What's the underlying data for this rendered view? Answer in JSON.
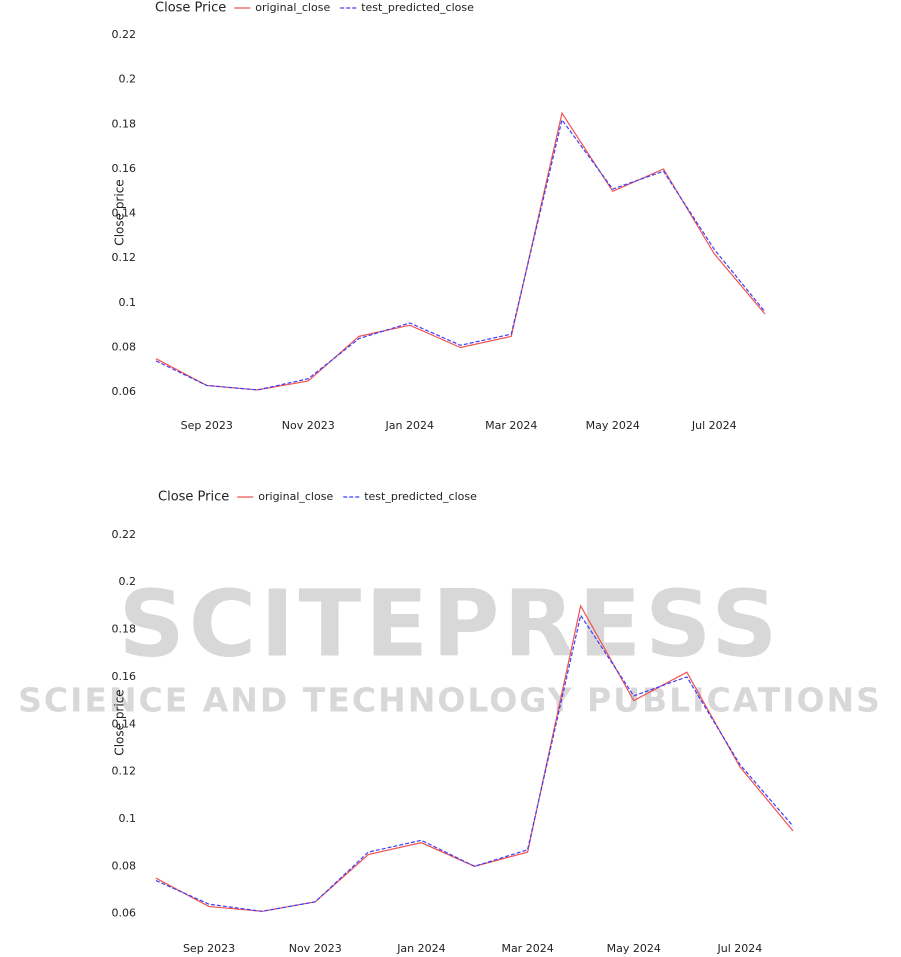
{
  "chart_data": [
    {
      "type": "line",
      "title": "Close Price",
      "y_label": "Close price",
      "x": [
        "2023-08",
        "2023-09",
        "2023-10",
        "2023-11",
        "2023-12",
        "2024-01",
        "2024-02",
        "2024-03",
        "2024-04",
        "2024-05",
        "2024-06",
        "2024-07",
        "2024-08"
      ],
      "series": [
        {
          "name": "original_close",
          "color": "#ef5350",
          "dash": false,
          "values": [
            0.075,
            0.063,
            0.061,
            0.065,
            0.085,
            0.09,
            0.08,
            0.085,
            0.185,
            0.15,
            0.16,
            0.122,
            0.095
          ]
        },
        {
          "name": "test_predicted_close",
          "color": "#3d3dff",
          "dash": true,
          "values": [
            0.074,
            0.063,
            0.061,
            0.066,
            0.084,
            0.091,
            0.081,
            0.086,
            0.182,
            0.151,
            0.159,
            0.124,
            0.096
          ]
        }
      ],
      "xlim": [
        "2023-08",
        "2024-08"
      ],
      "xticks": [
        {
          "value": "2023-09",
          "label": "Sep 2023"
        },
        {
          "value": "2023-11",
          "label": "Nov 2023"
        },
        {
          "value": "2024-01",
          "label": "Jan 2024"
        },
        {
          "value": "2024-03",
          "label": "Mar 2024"
        },
        {
          "value": "2024-05",
          "label": "May 2024"
        },
        {
          "value": "2024-07",
          "label": "Jul 2024"
        }
      ],
      "ylim": [
        0.052,
        0.229
      ],
      "yticks": [
        0.06,
        0.08,
        0.1,
        0.12,
        0.14,
        0.16,
        0.18,
        0.2,
        0.22
      ],
      "grid": false
    },
    {
      "type": "line",
      "title": "Close Price",
      "y_label": "Close price",
      "x": [
        "2023-08",
        "2023-09",
        "2023-10",
        "2023-11",
        "2023-12",
        "2024-01",
        "2024-02",
        "2024-03",
        "2024-04",
        "2024-05",
        "2024-06",
        "2024-07",
        "2024-08"
      ],
      "series": [
        {
          "name": "original_close",
          "color": "#ef5350",
          "dash": false,
          "values": [
            0.075,
            0.063,
            0.061,
            0.065,
            0.085,
            0.09,
            0.08,
            0.086,
            0.19,
            0.15,
            0.162,
            0.122,
            0.095
          ]
        },
        {
          "name": "test_predicted_close",
          "color": "#3d3dff",
          "dash": true,
          "values": [
            0.074,
            0.064,
            0.061,
            0.065,
            0.086,
            0.091,
            0.08,
            0.087,
            0.186,
            0.152,
            0.16,
            0.123,
            0.097
          ]
        }
      ],
      "xlim": [
        "2023-08",
        "2024-08"
      ],
      "xticks": [
        {
          "value": "2023-09",
          "label": "Sep 2023"
        },
        {
          "value": "2023-11",
          "label": "Nov 2023"
        },
        {
          "value": "2024-01",
          "label": "Jan 2024"
        },
        {
          "value": "2024-03",
          "label": "Mar 2024"
        },
        {
          "value": "2024-05",
          "label": "May 2024"
        },
        {
          "value": "2024-07",
          "label": "Jul 2024"
        }
      ],
      "ylim": [
        0.051,
        0.2305
      ],
      "yticks": [
        0.06,
        0.08,
        0.1,
        0.12,
        0.14,
        0.16,
        0.18,
        0.2,
        0.22
      ],
      "grid": false
    }
  ],
  "watermark": {
    "title": "SCITEPRESS",
    "subtitle": "SCIENCE AND TECHNOLOGY PUBLICATIONS"
  }
}
